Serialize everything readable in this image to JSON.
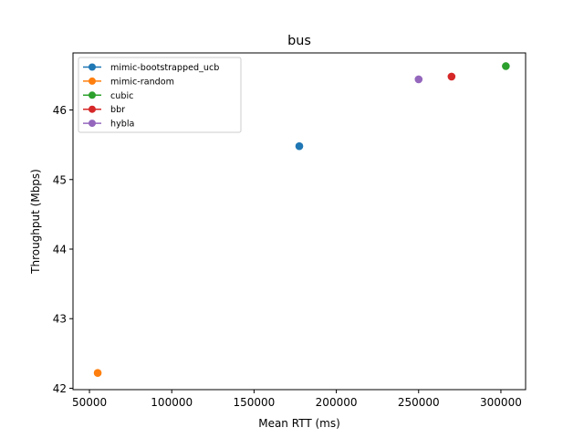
{
  "chart_data": {
    "type": "scatter",
    "title": "bus",
    "xlabel": "Mean RTT (ms)",
    "ylabel": "Throughput (Mbps)",
    "xlim": [
      40000,
      315000
    ],
    "ylim": [
      41.98,
      46.82
    ],
    "xticks": [
      50000,
      100000,
      150000,
      200000,
      250000,
      300000
    ],
    "yticks": [
      42,
      43,
      44,
      45,
      46
    ],
    "grid": false,
    "legend_position": "top-left",
    "series": [
      {
        "name": "mimic-bootstrapped_ucb",
        "color": "#1f77b4",
        "x": [
          177500
        ],
        "y": [
          45.48
        ]
      },
      {
        "name": "mimic-random",
        "color": "#ff7f0e",
        "x": [
          55000
        ],
        "y": [
          42.22
        ]
      },
      {
        "name": "cubic",
        "color": "#2ca02c",
        "x": [
          303000
        ],
        "y": [
          46.63
        ]
      },
      {
        "name": "bbr",
        "color": "#d62728",
        "x": [
          270000
        ],
        "y": [
          46.48
        ]
      },
      {
        "name": "hybla",
        "color": "#9467bd",
        "x": [
          250000
        ],
        "y": [
          46.44
        ]
      }
    ]
  }
}
